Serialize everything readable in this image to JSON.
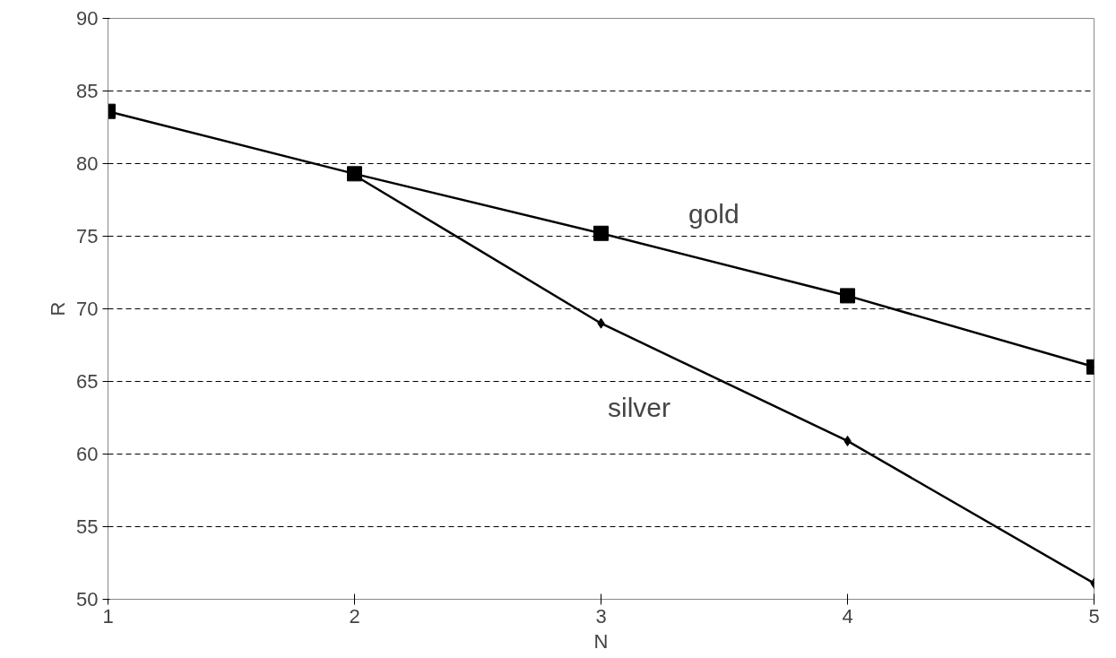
{
  "chart_data": {
    "type": "line",
    "xlabel": "N",
    "ylabel": "R",
    "x": [
      1,
      2,
      3,
      4,
      5
    ],
    "series": [
      {
        "name": "gold",
        "color": "#000000",
        "marker": "square",
        "values": [
          83.6,
          79.3,
          75.2,
          70.9,
          66.0
        ]
      },
      {
        "name": "silver",
        "color": "#000000",
        "marker": "diamond",
        "values": [
          null,
          79.2,
          69,
          60.9,
          51.1
        ]
      }
    ],
    "xlim": [
      1,
      5
    ],
    "xticks": [
      1,
      2,
      3,
      4,
      5
    ],
    "ylim": [
      50,
      90
    ],
    "yticks": [
      50,
      55,
      60,
      65,
      70,
      75,
      80,
      85,
      90
    ],
    "grid": "y",
    "line_style": "solid"
  }
}
